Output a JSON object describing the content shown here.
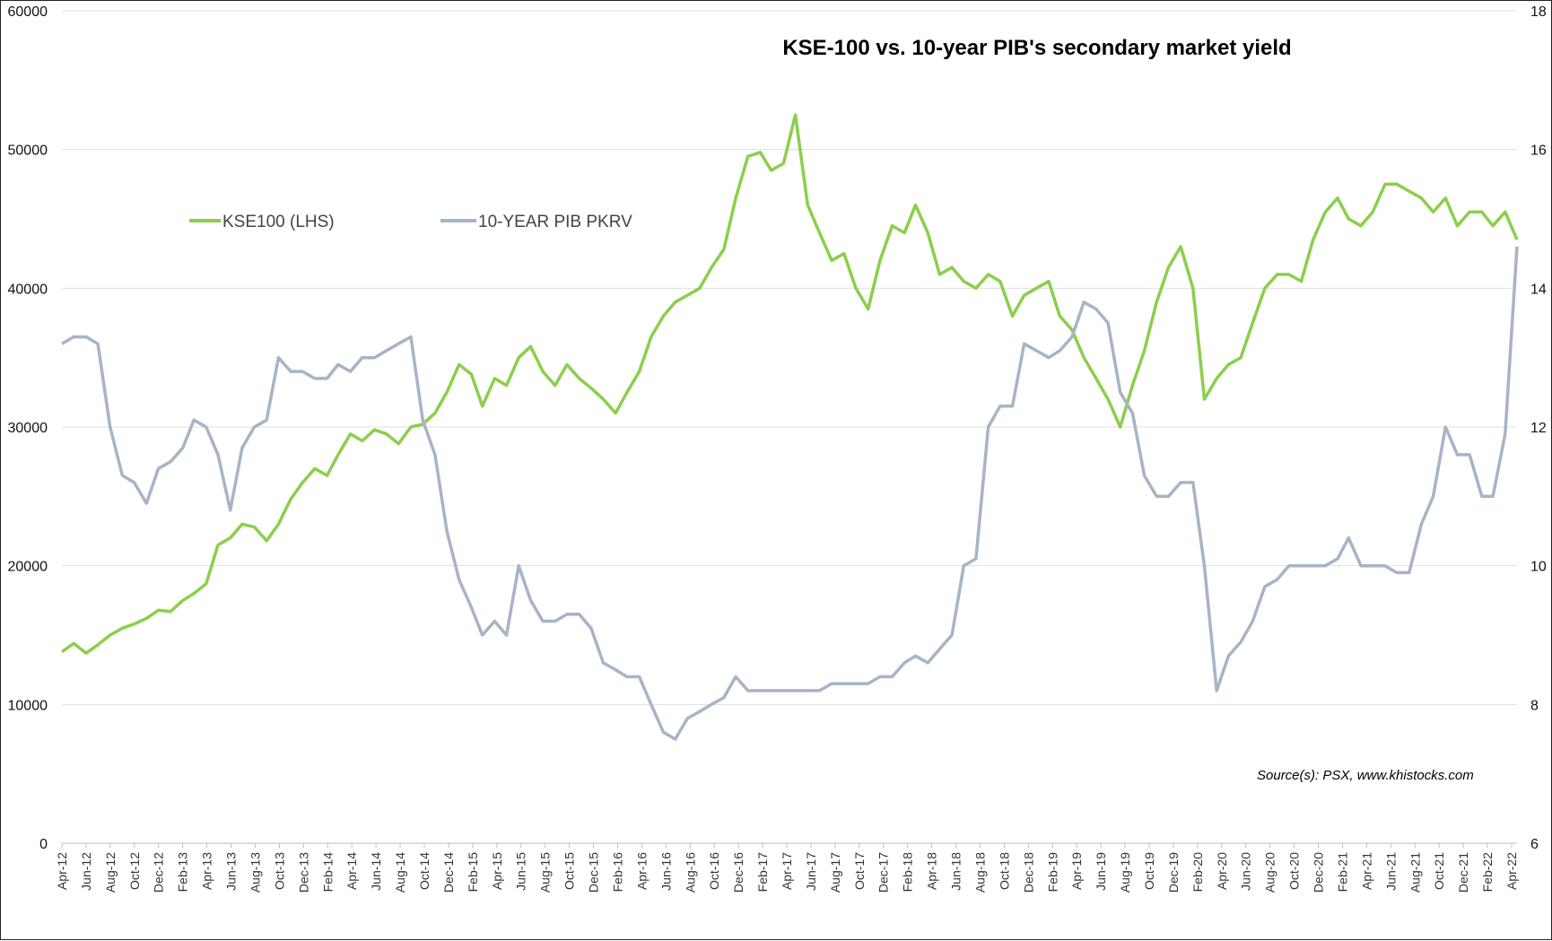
{
  "chart_data": {
    "type": "line",
    "title": "KSE-100 vs. 10-year PIB's secondary market yield",
    "source": "Source(s): PSX, www.khistocks.com",
    "colors": {
      "kse": "#8cce4c",
      "pib": "#a7b4c6",
      "grid": "#e0e0e0"
    },
    "legend_position": "top-left",
    "grid": true,
    "y_left": {
      "ylim": [
        0,
        60000
      ],
      "ticks": [
        "0",
        "10000",
        "20000",
        "30000",
        "40000",
        "50000",
        "60000"
      ]
    },
    "y_right": {
      "ylim": [
        6,
        18
      ],
      "ticks": [
        "6",
        "8",
        "10",
        "12",
        "14",
        "16",
        "18"
      ]
    },
    "x_ticks": [
      "Apr-12",
      "Jun-12",
      "Aug-12",
      "Oct-12",
      "Dec-12",
      "Feb-13",
      "Apr-13",
      "Jun-13",
      "Aug-13",
      "Oct-13",
      "Dec-13",
      "Feb-14",
      "Apr-14",
      "Jun-14",
      "Aug-14",
      "Oct-14",
      "Dec-14",
      "Feb-15",
      "Apr-15",
      "Jun-15",
      "Aug-15",
      "Oct-15",
      "Dec-15",
      "Feb-16",
      "Apr-16",
      "Jun-16",
      "Aug-16",
      "Oct-16",
      "Dec-16",
      "Feb-17",
      "Apr-17",
      "Jun-17",
      "Aug-17",
      "Oct-17",
      "Dec-17",
      "Feb-18",
      "Apr-18",
      "Jun-18",
      "Aug-18",
      "Oct-18",
      "Dec-18",
      "Feb-19",
      "Apr-19",
      "Jun-19",
      "Aug-19",
      "Oct-19",
      "Dec-19",
      "Feb-20",
      "Apr-20",
      "Jun-20",
      "Aug-20",
      "Oct-20",
      "Dec-20",
      "Feb-21",
      "Apr-21",
      "Jun-21",
      "Aug-21",
      "Oct-21",
      "Dec-21",
      "Feb-22",
      "Apr-22"
    ],
    "series": [
      {
        "name": "KSE100 (LHS)",
        "axis": "left",
        "x": [
          "2012-04",
          "2012-05",
          "2012-06",
          "2012-07",
          "2012-08",
          "2012-09",
          "2012-10",
          "2012-11",
          "2012-12",
          "2013-01",
          "2013-02",
          "2013-03",
          "2013-04",
          "2013-05",
          "2013-06",
          "2013-07",
          "2013-08",
          "2013-09",
          "2013-10",
          "2013-11",
          "2013-12",
          "2014-01",
          "2014-02",
          "2014-03",
          "2014-04",
          "2014-05",
          "2014-06",
          "2014-07",
          "2014-08",
          "2014-09",
          "2014-10",
          "2014-11",
          "2014-12",
          "2015-01",
          "2015-02",
          "2015-03",
          "2015-04",
          "2015-05",
          "2015-06",
          "2015-07",
          "2015-08",
          "2015-09",
          "2015-10",
          "2015-11",
          "2015-12",
          "2016-01",
          "2016-02",
          "2016-03",
          "2016-04",
          "2016-05",
          "2016-06",
          "2016-07",
          "2016-08",
          "2016-09",
          "2016-10",
          "2016-11",
          "2016-12",
          "2017-01",
          "2017-02",
          "2017-03",
          "2017-04",
          "2017-05",
          "2017-06",
          "2017-07",
          "2017-08",
          "2017-09",
          "2017-10",
          "2017-11",
          "2017-12",
          "2018-01",
          "2018-02",
          "2018-03",
          "2018-04",
          "2018-05",
          "2018-06",
          "2018-07",
          "2018-08",
          "2018-09",
          "2018-10",
          "2018-11",
          "2018-12",
          "2019-01",
          "2019-02",
          "2019-03",
          "2019-04",
          "2019-05",
          "2019-06",
          "2019-07",
          "2019-08",
          "2019-09",
          "2019-10",
          "2019-11",
          "2019-12",
          "2020-01",
          "2020-02",
          "2020-03",
          "2020-04",
          "2020-05",
          "2020-06",
          "2020-07",
          "2020-08",
          "2020-09",
          "2020-10",
          "2020-11",
          "2020-12",
          "2021-01",
          "2021-02",
          "2021-03",
          "2021-04",
          "2021-05",
          "2021-06",
          "2021-07",
          "2021-08",
          "2021-09",
          "2021-10",
          "2021-11",
          "2021-12",
          "2022-01",
          "2022-02",
          "2022-03",
          "2022-04",
          "2022-05"
        ],
        "values": [
          13800,
          14400,
          13700,
          14300,
          15000,
          15500,
          15800,
          16200,
          16800,
          16700,
          17500,
          18000,
          18700,
          21500,
          22000,
          23000,
          22800,
          21800,
          23000,
          24800,
          26000,
          27000,
          26500,
          28000,
          29500,
          29000,
          29800,
          29500,
          28800,
          30000,
          30200,
          31000,
          32500,
          34500,
          33800,
          31500,
          33500,
          33000,
          35000,
          35800,
          34000,
          33000,
          34500,
          33500,
          32800,
          32000,
          31000,
          32500,
          34000,
          36500,
          38000,
          39000,
          39500,
          40000,
          41500,
          42800,
          46500,
          49500,
          49800,
          48500,
          49000,
          52500,
          46000,
          44000,
          42000,
          42500,
          40000,
          38500,
          42000,
          44500,
          44000,
          46000,
          44000,
          41000,
          41500,
          40500,
          40000,
          41000,
          40500,
          38000,
          39500,
          40000,
          40500,
          38000,
          37000,
          35000,
          33500,
          32000,
          30000,
          33000,
          35500,
          39000,
          41500,
          43000,
          40000,
          32000,
          33500,
          34500,
          35000,
          37500,
          40000,
          41000,
          41000,
          40500,
          43500,
          45500,
          46500,
          45000,
          44500,
          45500,
          47500,
          47500,
          47000,
          46500,
          45500,
          46500,
          44500,
          45500,
          45500,
          44500,
          45500,
          43500
        ]
      },
      {
        "name": "10-YEAR PIB PKRV",
        "axis": "right",
        "x": [
          "2012-04",
          "2012-05",
          "2012-06",
          "2012-07",
          "2012-08",
          "2012-09",
          "2012-10",
          "2012-11",
          "2012-12",
          "2013-01",
          "2013-02",
          "2013-03",
          "2013-04",
          "2013-05",
          "2013-06",
          "2013-07",
          "2013-08",
          "2013-09",
          "2013-10",
          "2013-11",
          "2013-12",
          "2014-01",
          "2014-02",
          "2014-03",
          "2014-04",
          "2014-05",
          "2014-06",
          "2014-07",
          "2014-08",
          "2014-09",
          "2014-10",
          "2014-11",
          "2014-12",
          "2015-01",
          "2015-02",
          "2015-03",
          "2015-04",
          "2015-05",
          "2015-06",
          "2015-07",
          "2015-08",
          "2015-09",
          "2015-10",
          "2015-11",
          "2015-12",
          "2016-01",
          "2016-02",
          "2016-03",
          "2016-04",
          "2016-05",
          "2016-06",
          "2016-07",
          "2016-08",
          "2016-09",
          "2016-10",
          "2016-11",
          "2016-12",
          "2017-01",
          "2017-02",
          "2017-03",
          "2017-04",
          "2017-05",
          "2017-06",
          "2017-07",
          "2017-08",
          "2017-09",
          "2017-10",
          "2017-11",
          "2017-12",
          "2018-01",
          "2018-02",
          "2018-03",
          "2018-04",
          "2018-05",
          "2018-06",
          "2018-07",
          "2018-08",
          "2018-09",
          "2018-10",
          "2018-11",
          "2018-12",
          "2019-01",
          "2019-02",
          "2019-03",
          "2019-04",
          "2019-05",
          "2019-06",
          "2019-07",
          "2019-08",
          "2019-09",
          "2019-10",
          "2019-11",
          "2019-12",
          "2020-01",
          "2020-02",
          "2020-03",
          "2020-04",
          "2020-05",
          "2020-06",
          "2020-07",
          "2020-08",
          "2020-09",
          "2020-10",
          "2020-11",
          "2020-12",
          "2021-01",
          "2021-02",
          "2021-03",
          "2021-04",
          "2021-05",
          "2021-06",
          "2021-07",
          "2021-08",
          "2021-09",
          "2021-10",
          "2021-11",
          "2021-12",
          "2022-01",
          "2022-02",
          "2022-03",
          "2022-04",
          "2022-05"
        ],
        "values": [
          13.2,
          13.3,
          13.3,
          13.2,
          12.0,
          11.3,
          11.2,
          10.9,
          11.4,
          11.5,
          11.7,
          12.1,
          12.0,
          11.6,
          10.8,
          11.7,
          12.0,
          12.1,
          13.0,
          12.8,
          12.8,
          12.7,
          12.7,
          12.9,
          12.8,
          13.0,
          13.0,
          13.1,
          13.2,
          13.3,
          12.1,
          11.6,
          10.5,
          9.8,
          9.4,
          9.0,
          9.2,
          9.0,
          10.0,
          9.5,
          9.2,
          9.2,
          9.3,
          9.3,
          9.1,
          8.6,
          8.5,
          8.4,
          8.4,
          8.0,
          7.6,
          7.5,
          7.8,
          7.9,
          8.0,
          8.1,
          8.4,
          8.2,
          8.2,
          8.2,
          8.2,
          8.2,
          8.2,
          8.2,
          8.3,
          8.3,
          8.3,
          8.3,
          8.4,
          8.4,
          8.6,
          8.7,
          8.6,
          8.8,
          9.0,
          10.0,
          10.1,
          12.0,
          12.3,
          12.3,
          13.2,
          13.1,
          13.0,
          13.1,
          13.3,
          13.8,
          13.7,
          13.5,
          12.5,
          12.2,
          11.3,
          11.0,
          11.0,
          11.2,
          11.2,
          10.0,
          8.2,
          8.7,
          8.9,
          9.2,
          9.7,
          9.8,
          10.0,
          10.0,
          10.0,
          10.0,
          10.1,
          10.4,
          10.0,
          10.0,
          10.0,
          9.9,
          9.9,
          10.6,
          11.0,
          12.0,
          11.6,
          11.6,
          11.0,
          11.0,
          11.9,
          14.6
        ]
      }
    ]
  }
}
